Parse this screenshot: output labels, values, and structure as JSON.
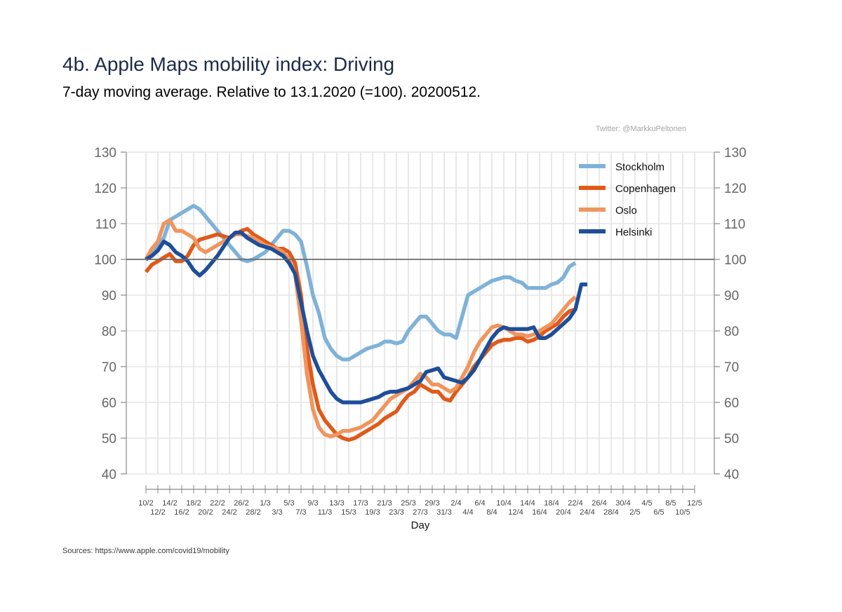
{
  "title": "4b. Apple Maps mobility index: Driving",
  "subtitle": "7-day moving average. Relative to 13.1.2020 (=100). 20200512.",
  "credit": "Twitter: @MarkkuPeltonen",
  "source": "Sources: https://www.apple.com/covid19/mobility",
  "chart_data": {
    "type": "line",
    "xlabel": "Day",
    "ylabel": "",
    "ylim": [
      40,
      130
    ],
    "yticks": [
      40,
      50,
      60,
      70,
      80,
      90,
      100,
      110,
      120,
      130
    ],
    "reference_line": 100,
    "grid": true,
    "legend_position": "top-right",
    "x_start": "10/2",
    "x_end": "12/5",
    "x_tick_labels_upper": [
      "10/2",
      "14/2",
      "18/2",
      "22/2",
      "26/2",
      "1/3",
      "5/3",
      "9/3",
      "13/3",
      "17/3",
      "21/3",
      "25/3",
      "29/3",
      "2/4",
      "6/4",
      "10/4",
      "14/4",
      "18/4",
      "22/4",
      "26/4",
      "30/4",
      "4/5",
      "8/5",
      "12/5"
    ],
    "x_tick_labels_lower": [
      "12/2",
      "16/2",
      "20/2",
      "24/2",
      "28/2",
      "3/3",
      "7/3",
      "11/3",
      "15/3",
      "19/3",
      "23/3",
      "27/3",
      "31/3",
      "4/4",
      "8/4",
      "12/4",
      "16/4",
      "20/4",
      "24/4",
      "28/4",
      "2/5",
      "6/5",
      "10/5"
    ],
    "series": [
      {
        "name": "Stockholm",
        "color": "#7fb2d9",
        "values": [
          100,
          102,
          104,
          106,
          111,
          112,
          113,
          114,
          115,
          114,
          112,
          110,
          108,
          106,
          104,
          102,
          100,
          99.5,
          100,
          101,
          102,
          104,
          106,
          108,
          108,
          107,
          105,
          98,
          90,
          85,
          78,
          75,
          73,
          72,
          72,
          73,
          74,
          75,
          75.5,
          76,
          77,
          77,
          76.5,
          77,
          80,
          82,
          84,
          84,
          82,
          80,
          79,
          79,
          78,
          84,
          90,
          91,
          92,
          93,
          94,
          94.5,
          95,
          95,
          94,
          93.5,
          92,
          92,
          92,
          92,
          93,
          93.5,
          95,
          98,
          99
        ]
      },
      {
        "name": "Copenhagen",
        "color": "#e05a1a",
        "values": [
          96.5,
          98.5,
          99.5,
          100.5,
          101.5,
          99.5,
          99.5,
          101,
          104,
          105.5,
          106,
          106.5,
          107,
          106.5,
          106,
          107,
          108,
          108.5,
          107,
          106,
          105,
          104,
          103,
          103,
          102,
          99,
          90,
          75,
          65,
          58,
          55,
          53,
          51,
          50,
          49.5,
          50,
          51,
          52,
          53,
          54,
          55.5,
          56.5,
          57.5,
          60,
          62,
          63,
          65,
          64,
          63,
          63,
          61,
          60.5,
          63,
          65,
          67,
          70,
          72,
          74,
          76,
          77,
          77.5,
          77.5,
          78,
          78,
          77,
          77.5,
          78.5,
          80,
          81,
          82,
          84,
          85.5,
          86
        ]
      },
      {
        "name": "Oslo",
        "color": "#f0955e",
        "values": [
          100,
          103,
          105,
          110,
          111,
          108,
          108,
          107,
          106,
          103,
          102,
          103,
          104,
          105,
          106,
          107,
          107,
          106.5,
          106,
          105,
          104,
          103.5,
          103,
          102,
          100,
          96,
          83,
          68,
          58,
          53,
          51,
          50.5,
          51,
          52,
          52,
          52.5,
          53,
          54,
          55,
          57,
          59,
          61,
          62,
          63,
          64,
          66,
          68,
          67,
          65,
          65,
          64,
          63,
          64,
          67,
          70,
          74,
          77,
          79,
          81,
          81.5,
          81,
          80,
          79,
          79,
          78.5,
          79,
          80,
          81,
          82,
          84,
          86,
          88,
          89.5
        ]
      },
      {
        "name": "Helsinki",
        "color": "#1f4e99",
        "values": [
          100,
          101,
          102.5,
          105,
          104,
          102,
          101,
          99.5,
          97,
          95.5,
          97,
          99,
          101,
          103.5,
          106,
          107.5,
          107.5,
          106,
          105,
          104,
          103.5,
          103,
          102,
          101,
          99,
          96,
          88,
          80,
          73,
          69,
          66,
          63,
          61,
          60,
          60,
          60,
          60,
          60.5,
          61,
          61.5,
          62.5,
          63,
          63,
          63.5,
          64,
          65,
          66,
          68.5,
          69,
          69.5,
          67,
          66.5,
          66,
          65.5,
          67,
          69,
          72,
          75,
          78,
          80,
          81,
          80.5,
          80.5,
          80.5,
          80.5,
          81,
          78,
          78,
          79,
          80.5,
          82,
          83.5,
          86,
          93,
          93
        ]
      }
    ]
  }
}
